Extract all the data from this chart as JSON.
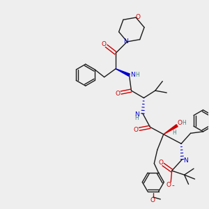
{
  "background_color": "#eeeeee",
  "bond_color": "#1a1a1a",
  "N_color": "#0000cc",
  "O_color": "#cc0000",
  "H_color": "#408080",
  "figsize": [
    3.0,
    3.0
  ],
  "dpi": 100,
  "xlim": [
    0,
    10
  ],
  "ylim": [
    0,
    10
  ]
}
